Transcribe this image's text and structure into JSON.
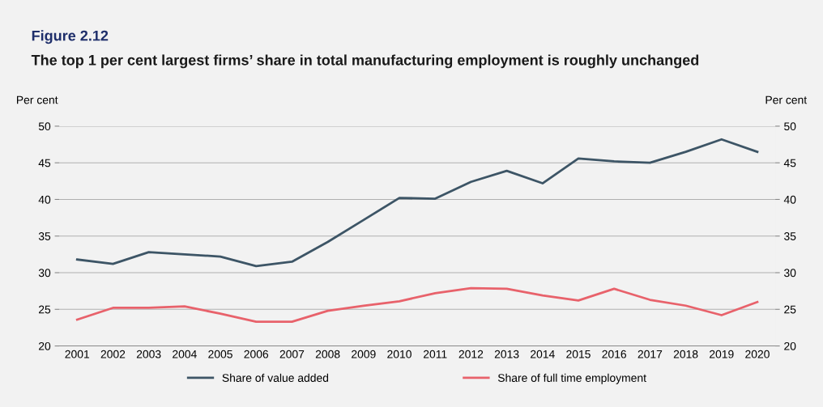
{
  "chart_data": {
    "type": "line",
    "title": "Figure 2.12",
    "subtitle": "The top 1 per cent largest firms’ share in total manufacturing employment is roughly unchanged",
    "ylabel": "Per cent",
    "y2label": "Per cent",
    "categories": [
      "2001",
      "2002",
      "2003",
      "2004",
      "2005",
      "2006",
      "2007",
      "2008",
      "2009",
      "2010",
      "2011",
      "2012",
      "2013",
      "2014",
      "2015",
      "2016",
      "2017",
      "2018",
      "2019",
      "2020"
    ],
    "series": [
      {
        "name": "Share of value added",
        "color": "#3d5566",
        "values": [
          31.8,
          31.2,
          32.8,
          32.5,
          32.2,
          30.9,
          31.5,
          34.2,
          37.2,
          40.2,
          40.1,
          42.4,
          43.9,
          42.2,
          45.6,
          45.2,
          45.0,
          46.5,
          48.2,
          46.5
        ]
      },
      {
        "name": "Share of full time employment",
        "color": "#e8626b",
        "values": [
          23.6,
          25.2,
          25.2,
          25.4,
          24.4,
          23.3,
          23.3,
          24.8,
          25.5,
          26.1,
          27.2,
          27.9,
          27.8,
          26.9,
          26.2,
          27.8,
          26.3,
          25.5,
          24.2,
          26.0
        ]
      }
    ],
    "ylim": [
      20,
      50
    ],
    "yticks": [
      20,
      25,
      30,
      35,
      40,
      45,
      50
    ],
    "y2lim": [
      20,
      50
    ],
    "y2ticks": [
      20,
      25,
      30,
      35,
      40,
      45,
      50
    ],
    "grid": "y",
    "legend": "bottom",
    "marker": "none",
    "line_style": "solid"
  }
}
